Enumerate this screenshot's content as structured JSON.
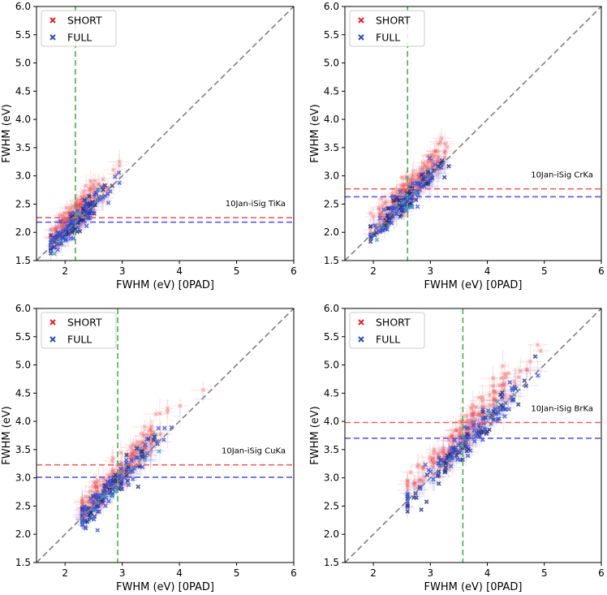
{
  "chart_data": [
    {
      "type": "scatter",
      "title": "",
      "xlabel": "FWHM (eV) [0PAD]",
      "ylabel": "FWHM (eV)",
      "xlim": [
        1.5,
        6.0
      ],
      "ylim": [
        1.5,
        6.0
      ],
      "xticks": [
        "2",
        "3",
        "4",
        "5",
        "6"
      ],
      "yticks": [
        "1.5",
        "2.0",
        "2.5",
        "3.0",
        "3.5",
        "4.0",
        "4.5",
        "5.0",
        "5.5",
        "6.0"
      ],
      "annotation": "10Jan-iSig TiKa",
      "legend_position": "top-left",
      "legend": [
        {
          "label": "SHORT",
          "color": "#e8202a"
        },
        {
          "label": "FULL",
          "color": "#2a4fb0"
        }
      ],
      "vline": 2.18,
      "hline_short": 2.26,
      "hline_full": 2.18,
      "cluster": {
        "x_center": 2.18,
        "x_spread": 0.28,
        "x_range": [
          1.75,
          2.95
        ]
      },
      "colors": {
        "short": "#e8202a",
        "full": "#3a4fd0",
        "diag": "#808080",
        "vline": "#4caf50",
        "hline_short": "#f06060",
        "hline_full": "#5a5ae6"
      }
    },
    {
      "type": "scatter",
      "title": "",
      "xlabel": "FWHM (eV) [0PAD]",
      "ylabel": "FWHM (eV)",
      "xlim": [
        1.5,
        6.0
      ],
      "ylim": [
        1.5,
        6.0
      ],
      "xticks": [
        "2",
        "3",
        "4",
        "5",
        "6"
      ],
      "yticks": [
        "1.5",
        "2.0",
        "2.5",
        "3.0",
        "3.5",
        "4.0",
        "4.5",
        "5.0",
        "5.5",
        "6.0"
      ],
      "annotation": "10Jan-iSig CrKa",
      "legend_position": "top-left",
      "legend": [
        {
          "label": "SHORT",
          "color": "#e8202a"
        },
        {
          "label": "FULL",
          "color": "#2a4fb0"
        }
      ],
      "vline": 2.6,
      "hline_short": 2.77,
      "hline_full": 2.63,
      "cluster": {
        "x_center": 2.6,
        "x_spread": 0.33,
        "x_range": [
          1.95,
          3.6
        ]
      },
      "colors": {
        "short": "#e8202a",
        "full": "#3a4fd0",
        "diag": "#808080",
        "vline": "#4caf50",
        "hline_short": "#f06060",
        "hline_full": "#5a5ae6"
      }
    },
    {
      "type": "scatter",
      "title": "",
      "xlabel": "FWHM (eV) [0PAD]",
      "ylabel": "FWHM (eV)",
      "xlim": [
        1.5,
        6.0
      ],
      "ylim": [
        1.5,
        6.0
      ],
      "xticks": [
        "2",
        "3",
        "4",
        "5",
        "6"
      ],
      "yticks": [
        "1.5",
        "2.0",
        "2.5",
        "3.0",
        "3.5",
        "4.0",
        "4.5",
        "5.0",
        "5.5",
        "6.0"
      ],
      "annotation": "10Jan-iSig CuKa",
      "legend_position": "top-left",
      "legend": [
        {
          "label": "SHORT",
          "color": "#e8202a"
        },
        {
          "label": "FULL",
          "color": "#2a4fb0"
        }
      ],
      "vline": 2.92,
      "hline_short": 3.23,
      "hline_full": 3.01,
      "cluster": {
        "x_center": 2.9,
        "x_spread": 0.42,
        "x_range": [
          2.3,
          5.15
        ]
      },
      "colors": {
        "short": "#e8202a",
        "full": "#3a4fd0",
        "diag": "#808080",
        "vline": "#4caf50",
        "hline_short": "#f06060",
        "hline_full": "#5a5ae6"
      }
    },
    {
      "type": "scatter",
      "title": "",
      "xlabel": "FWHM (eV) [0PAD]",
      "ylabel": "FWHM (eV)",
      "xlim": [
        1.5,
        6.0
      ],
      "ylim": [
        1.5,
        6.0
      ],
      "xticks": [
        "2",
        "3",
        "4",
        "5",
        "6"
      ],
      "yticks": [
        "1.5",
        "2.0",
        "2.5",
        "3.0",
        "3.5",
        "4.0",
        "4.5",
        "5.0",
        "5.5",
        "6.0"
      ],
      "annotation": "10Jan-iSig BrKa",
      "legend_position": "top-left",
      "legend": [
        {
          "label": "SHORT",
          "color": "#e8202a"
        },
        {
          "label": "FULL",
          "color": "#2a4fb0"
        }
      ],
      "vline": 3.57,
      "hline_short": 3.98,
      "hline_full": 3.7,
      "cluster": {
        "x_center": 3.6,
        "x_spread": 0.55,
        "x_range": [
          2.6,
          5.6
        ]
      },
      "colors": {
        "short": "#e8202a",
        "full": "#3a4fd0",
        "diag": "#808080",
        "vline": "#4caf50",
        "hline_short": "#f06060",
        "hline_full": "#5a5ae6"
      }
    }
  ]
}
